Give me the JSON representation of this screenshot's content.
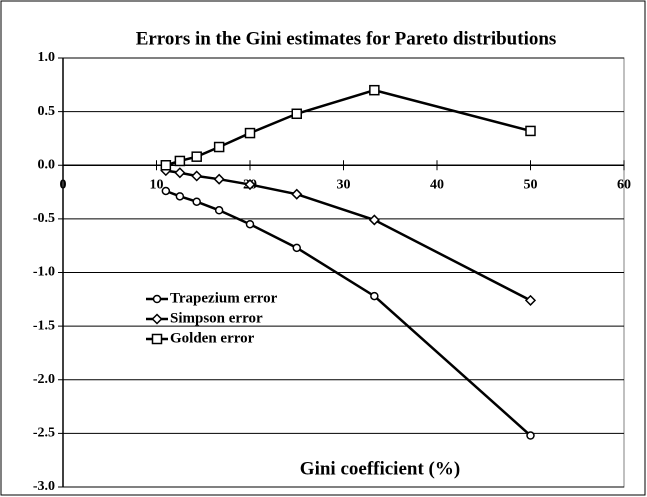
{
  "chart_data": {
    "type": "line",
    "title": "Errors in the Gini estimates for Pareto distributions",
    "xlabel": "Gini coefficient (%)",
    "x": [
      11,
      12.5,
      14.3,
      16.7,
      20,
      25,
      33.3,
      50
    ],
    "series": [
      {
        "name": "Trapezium error",
        "color": "#000000",
        "marker": "circle",
        "values": [
          -0.24,
          -0.29,
          -0.34,
          -0.42,
          -0.55,
          -0.77,
          -1.22,
          -2.52
        ]
      },
      {
        "name": "Simpson error",
        "color": "#000000",
        "marker": "diamond",
        "values": [
          -0.05,
          -0.07,
          -0.1,
          -0.13,
          -0.18,
          -0.27,
          -0.51,
          -1.26
        ]
      },
      {
        "name": "Golden error",
        "color": "#000000",
        "marker": "square",
        "values": [
          0.0,
          0.04,
          0.08,
          0.17,
          0.3,
          0.48,
          0.7,
          0.32
        ]
      }
    ],
    "xlim": [
      0,
      60
    ],
    "xticks": [
      0,
      10,
      20,
      30,
      40,
      50,
      60
    ],
    "ylim": [
      -3,
      1
    ],
    "yticks": [
      {
        "value": 1,
        "label": "1.0"
      },
      {
        "value": 0.5,
        "label": "0.5"
      },
      {
        "value": 0,
        "label": "0.0"
      },
      {
        "value": -0.5,
        "label": "-0.5"
      },
      {
        "value": -1,
        "label": "-1.0"
      },
      {
        "value": -1.5,
        "label": "-1.5"
      },
      {
        "value": -2,
        "label": "-2.0"
      },
      {
        "value": -2.5,
        "label": "-2.5"
      },
      {
        "value": -3,
        "label": "-3.0"
      }
    ],
    "grid": true
  }
}
